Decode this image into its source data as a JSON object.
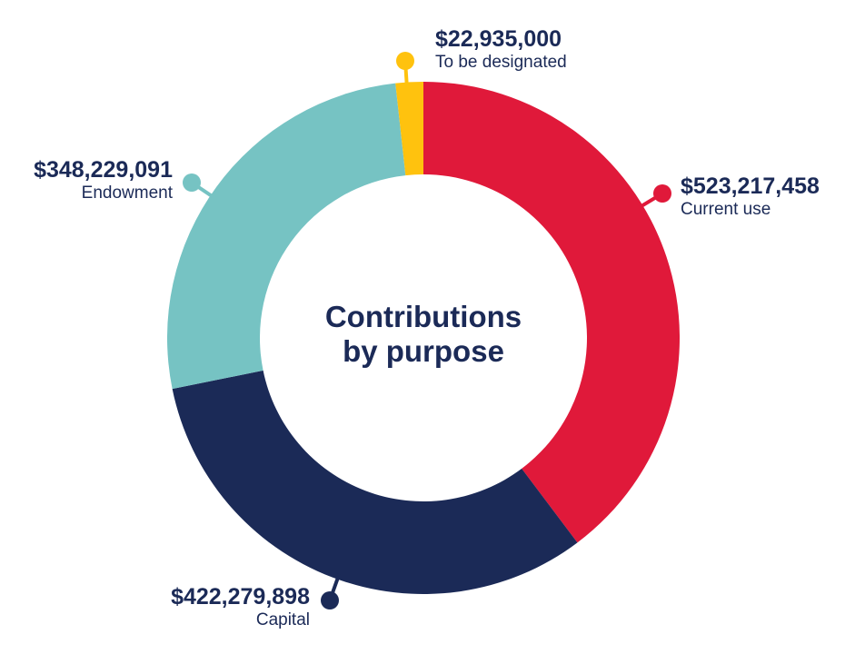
{
  "chart_data": {
    "type": "pie",
    "donut": true,
    "title": "Contributions by purpose",
    "title_lines": [
      "Contributions",
      "by purpose"
    ],
    "slices": [
      {
        "label": "Current use",
        "value": 523217458,
        "value_label": "$523,217,458",
        "color": "#E0193A"
      },
      {
        "label": "Capital",
        "value": 422279898,
        "value_label": "$422,279,898",
        "color": "#1B2A57"
      },
      {
        "label": "Endowment",
        "value": 348229091,
        "value_label": "$348,229,091",
        "color": "#76C3C3"
      },
      {
        "label": "To be designated",
        "value": 22935000,
        "value_label": "$22,935,000",
        "color": "#FFC20E"
      }
    ],
    "start": "top",
    "direction": "clockwise",
    "legend": "none"
  }
}
